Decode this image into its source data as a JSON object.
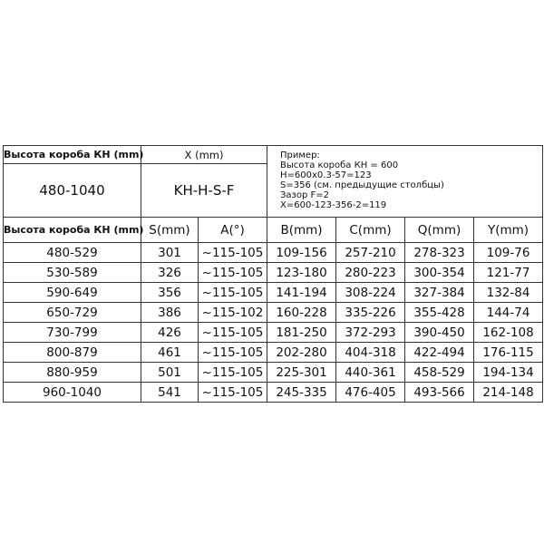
{
  "top": {
    "height_label": "Высота короба КН (mm)",
    "x_label": "X (mm)",
    "range": "480-1040",
    "formula": "KH-H-S-F",
    "example": [
      "Пример:",
      "Высота короба КН = 600",
      "H=600x0.3-57=123",
      "S=356 (см. предыдущие столбцы)",
      "Зазор F=2",
      "X=600-123-356-2=119"
    ]
  },
  "headers": [
    "Высота короба КН (mm)",
    "S(mm)",
    "A(°)",
    "B(mm)",
    "C(mm)",
    "Q(mm)",
    "Y(mm)"
  ],
  "rows": [
    [
      "480-529",
      "301",
      "~115-105",
      "109-156",
      "257-210",
      "278-323",
      "109-76"
    ],
    [
      "530-589",
      "326",
      "~115-105",
      "123-180",
      "280-223",
      "300-354",
      "121-77"
    ],
    [
      "590-649",
      "356",
      "~115-105",
      "141-194",
      "308-224",
      "327-384",
      "132-84"
    ],
    [
      "650-729",
      "386",
      "~115-102",
      "160-228",
      "335-226",
      "355-428",
      "144-74"
    ],
    [
      "730-799",
      "426",
      "~115-105",
      "181-250",
      "372-293",
      "390-450",
      "162-108"
    ],
    [
      "800-879",
      "461",
      "~115-105",
      "202-280",
      "404-318",
      "422-494",
      "176-115"
    ],
    [
      "880-959",
      "501",
      "~115-105",
      "225-301",
      "440-361",
      "458-529",
      "194-134"
    ],
    [
      "960-1040",
      "541",
      "~115-105",
      "245-335",
      "476-405",
      "493-566",
      "214-148"
    ]
  ]
}
